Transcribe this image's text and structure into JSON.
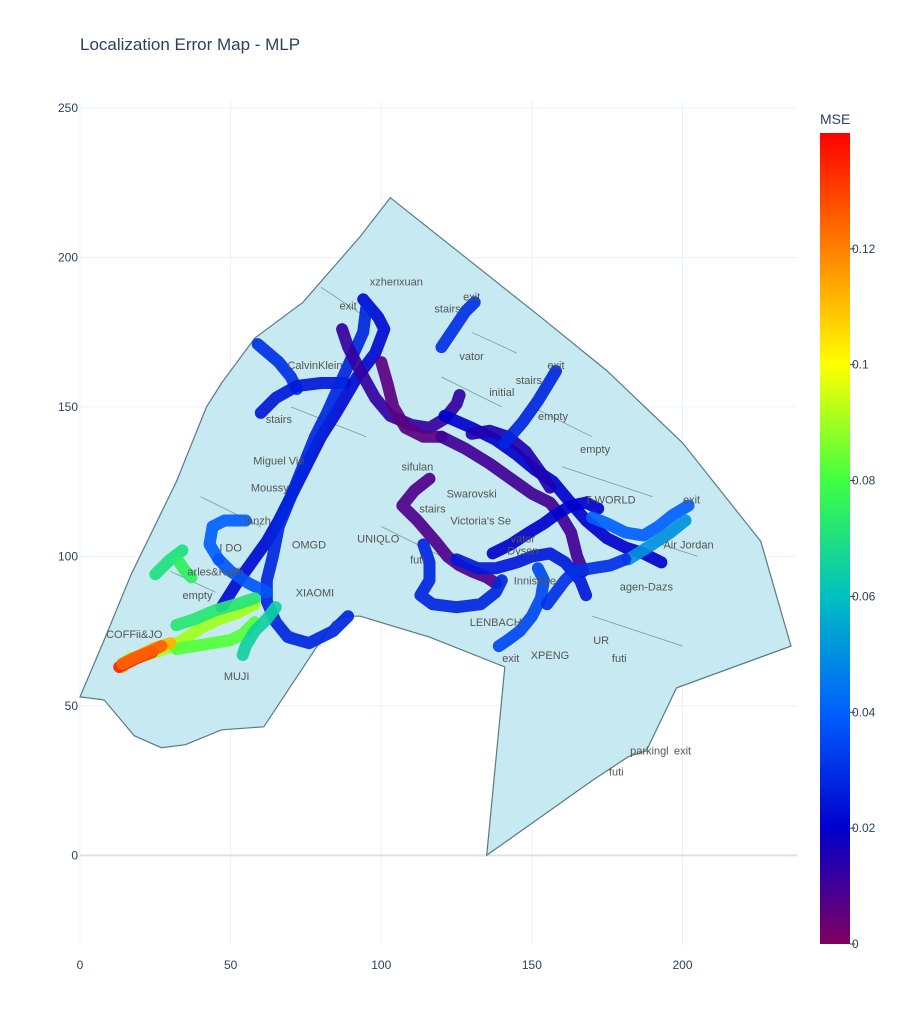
{
  "chart_data": {
    "type": "scatter",
    "title": "Localization Error Map - MLP",
    "xlabel": "",
    "ylabel": "",
    "xlim": [
      0,
      238
    ],
    "ylim": [
      -30,
      252
    ],
    "x_ticks": [
      0,
      50,
      100,
      150,
      200
    ],
    "y_ticks": [
      0,
      50,
      100,
      150,
      200,
      250
    ],
    "grid": true,
    "colorbar": {
      "title": "MSE",
      "range": [
        0,
        0.14
      ],
      "ticks": [
        0,
        0.02,
        0.04,
        0.06,
        0.08,
        0.1,
        0.12
      ],
      "tick_labels": [
        "0",
        "0.02",
        "0.04",
        "0.06",
        "0.08",
        "0.1",
        "0.12"
      ],
      "colorscale": [
        "#800060",
        "#0000cc",
        "#0060ff",
        "#00c0c0",
        "#40ff40",
        "#ffff00",
        "#ff8000",
        "#ff0000"
      ]
    },
    "floor_color": "#c6e9f2",
    "floor_outline": [
      [
        27,
        36
      ],
      [
        18,
        40
      ],
      [
        8,
        52
      ],
      [
        0,
        53
      ],
      [
        8,
        72
      ],
      [
        17,
        94
      ],
      [
        32,
        125
      ],
      [
        42,
        150
      ],
      [
        47,
        158
      ],
      [
        58,
        173
      ],
      [
        74,
        185
      ],
      [
        93,
        207
      ],
      [
        103,
        220
      ],
      [
        153,
        180
      ],
      [
        175,
        162
      ],
      [
        200,
        138
      ],
      [
        226,
        105
      ],
      [
        236,
        70
      ],
      [
        198,
        56
      ],
      [
        188,
        35
      ],
      [
        182,
        33
      ],
      [
        170,
        25
      ],
      [
        135,
        0
      ],
      [
        141,
        63
      ],
      [
        116,
        73
      ],
      [
        93,
        80
      ],
      [
        88,
        80
      ],
      [
        84,
        78
      ],
      [
        61,
        43
      ],
      [
        47,
        42
      ],
      [
        35,
        37
      ],
      [
        27,
        36
      ]
    ],
    "store_labels": [
      {
        "text": "xzhenxuan",
        "x": 105,
        "y": 192
      },
      {
        "text": "exit",
        "x": 89,
        "y": 184
      },
      {
        "text": "stairs",
        "x": 122,
        "y": 183
      },
      {
        "text": "exit",
        "x": 130,
        "y": 187
      },
      {
        "text": "vator",
        "x": 130,
        "y": 167
      },
      {
        "text": "exit",
        "x": 158,
        "y": 164
      },
      {
        "text": "stairs",
        "x": 149,
        "y": 159
      },
      {
        "text": "CalvinKlein",
        "x": 78,
        "y": 164
      },
      {
        "text": "initial",
        "x": 140,
        "y": 155
      },
      {
        "text": "empty",
        "x": 157,
        "y": 147
      },
      {
        "text": "stairs",
        "x": 66,
        "y": 146
      },
      {
        "text": "empty",
        "x": 171,
        "y": 136
      },
      {
        "text": "Miguel Vie",
        "x": 66,
        "y": 132
      },
      {
        "text": "sifulan",
        "x": 112,
        "y": 130
      },
      {
        "text": "Moussy",
        "x": 63,
        "y": 123
      },
      {
        "text": "Swarovski",
        "x": 130,
        "y": 121
      },
      {
        "text": "T-WORLD",
        "x": 176,
        "y": 119
      },
      {
        "text": "exit",
        "x": 203,
        "y": 119
      },
      {
        "text": "stairs",
        "x": 117,
        "y": 116
      },
      {
        "text": "Victoria's Se",
        "x": 133,
        "y": 112
      },
      {
        "text": "lanzh",
        "x": 59,
        "y": 112
      },
      {
        "text": "vator",
        "x": 147,
        "y": 106
      },
      {
        "text": "UNIQLO",
        "x": 99,
        "y": 106
      },
      {
        "text": "OMGD",
        "x": 76,
        "y": 104
      },
      {
        "text": "Dyson",
        "x": 147,
        "y": 102
      },
      {
        "text": "Air Jordan",
        "x": 202,
        "y": 104
      },
      {
        "text": "I DO",
        "x": 50,
        "y": 103
      },
      {
        "text": "futi",
        "x": 112,
        "y": 99
      },
      {
        "text": "arles&Keith",
        "x": 45,
        "y": 95
      },
      {
        "text": "Innisfree",
        "x": 151,
        "y": 92
      },
      {
        "text": "agen-Dazs",
        "x": 188,
        "y": 90
      },
      {
        "text": "XIAOMI",
        "x": 78,
        "y": 88
      },
      {
        "text": "empty",
        "x": 39,
        "y": 87
      },
      {
        "text": "LENBACH",
        "x": 138,
        "y": 78
      },
      {
        "text": "COFFii&JO",
        "x": 18,
        "y": 74
      },
      {
        "text": "UR",
        "x": 173,
        "y": 72
      },
      {
        "text": "XPENG",
        "x": 156,
        "y": 67
      },
      {
        "text": "exit",
        "x": 143,
        "y": 66
      },
      {
        "text": "futi",
        "x": 179,
        "y": 66
      },
      {
        "text": "MUJI",
        "x": 52,
        "y": 60
      },
      {
        "text": "parkingl",
        "x": 189,
        "y": 35
      },
      {
        "text": "exit",
        "x": 200,
        "y": 35
      },
      {
        "text": "futi",
        "x": 178,
        "y": 28
      }
    ],
    "trajectories": [
      {
        "points": [
          [
            59,
            171
          ],
          [
            66,
            165
          ],
          [
            70,
            160
          ],
          [
            72,
            156
          ]
        ],
        "mse": 0.03
      },
      {
        "points": [
          [
            60,
            148
          ],
          [
            65,
            153
          ],
          [
            72,
            157
          ],
          [
            80,
            158
          ],
          [
            88,
            158
          ]
        ],
        "mse": 0.025
      },
      {
        "points": [
          [
            94,
            186
          ],
          [
            99,
            180
          ],
          [
            101,
            176
          ],
          [
            98,
            168
          ],
          [
            92,
            160
          ],
          [
            85,
            148
          ],
          [
            80,
            140
          ],
          [
            75,
            130
          ],
          [
            70,
            120
          ],
          [
            66,
            112
          ],
          [
            62,
            105
          ],
          [
            57,
            98
          ],
          [
            52,
            91
          ],
          [
            47,
            83
          ]
        ],
        "mse": 0.022
      },
      {
        "points": [
          [
            95,
            183
          ],
          [
            94,
            175
          ],
          [
            90,
            166
          ],
          [
            86,
            157
          ],
          [
            82,
            148
          ],
          [
            78,
            140
          ],
          [
            74,
            130
          ],
          [
            70,
            120
          ],
          [
            66,
            110
          ],
          [
            64,
            100
          ],
          [
            62,
            92
          ],
          [
            62,
            85
          ],
          [
            65,
            78
          ],
          [
            69,
            73
          ],
          [
            76,
            71
          ],
          [
            84,
            75
          ],
          [
            89,
            80
          ]
        ],
        "mse": 0.028
      },
      {
        "points": [
          [
            87,
            176
          ],
          [
            89,
            170
          ],
          [
            93,
            162
          ],
          [
            98,
            153
          ],
          [
            103,
            147
          ],
          [
            110,
            144
          ],
          [
            116,
            143
          ],
          [
            121,
            146
          ],
          [
            125,
            151
          ],
          [
            126,
            154
          ]
        ],
        "mse": 0.012
      },
      {
        "points": [
          [
            100,
            165
          ],
          [
            102,
            158
          ],
          [
            104,
            150
          ],
          [
            108,
            143
          ],
          [
            114,
            140
          ],
          [
            120,
            140
          ]
        ],
        "mse": 0.006
      },
      {
        "points": [
          [
            120,
            140
          ],
          [
            128,
            136
          ],
          [
            136,
            131
          ],
          [
            143,
            126
          ],
          [
            150,
            121
          ],
          [
            156,
            118
          ],
          [
            160,
            113
          ],
          [
            163,
            108
          ],
          [
            165,
            100
          ],
          [
            167,
            95
          ]
        ],
        "mse": 0.01
      },
      {
        "points": [
          [
            121,
            147
          ],
          [
            130,
            143
          ],
          [
            138,
            139
          ],
          [
            145,
            134
          ],
          [
            151,
            129
          ],
          [
            157,
            125
          ],
          [
            162,
            119
          ],
          [
            168,
            112
          ],
          [
            175,
            106
          ],
          [
            181,
            103
          ],
          [
            187,
            101
          ],
          [
            193,
            98
          ]
        ],
        "mse": 0.02
      },
      {
        "points": [
          [
            130,
            141
          ],
          [
            136,
            142
          ],
          [
            142,
            140
          ],
          [
            148,
            135
          ],
          [
            153,
            128
          ],
          [
            156,
            123
          ]
        ],
        "mse": 0.015
      },
      {
        "points": [
          [
            141,
            138
          ],
          [
            147,
            145
          ],
          [
            152,
            152
          ],
          [
            158,
            162
          ]
        ],
        "mse": 0.028
      },
      {
        "points": [
          [
            120,
            170
          ],
          [
            124,
            176
          ],
          [
            128,
            182
          ],
          [
            131,
            185
          ]
        ],
        "mse": 0.03
      },
      {
        "points": [
          [
            116,
            126
          ],
          [
            111,
            122
          ],
          [
            107,
            117
          ],
          [
            112,
            112
          ],
          [
            118,
            105
          ],
          [
            122,
            100
          ],
          [
            126,
            97
          ],
          [
            130,
            95
          ],
          [
            135,
            93
          ],
          [
            138,
            91
          ]
        ],
        "mse": 0.008
      },
      {
        "points": [
          [
            114,
            104
          ],
          [
            116,
            98
          ],
          [
            116,
            92
          ],
          [
            113,
            87
          ],
          [
            117,
            84
          ],
          [
            125,
            83
          ],
          [
            133,
            84
          ],
          [
            138,
            88
          ],
          [
            140,
            92
          ]
        ],
        "mse": 0.028
      },
      {
        "points": [
          [
            137,
            101
          ],
          [
            143,
            104
          ],
          [
            149,
            108
          ],
          [
            154,
            111
          ],
          [
            158,
            114
          ],
          [
            163,
            117
          ],
          [
            168,
            118
          ],
          [
            172,
            116
          ]
        ],
        "mse": 0.02
      },
      {
        "points": [
          [
            170,
            113
          ],
          [
            175,
            111
          ],
          [
            181,
            108
          ],
          [
            187,
            107
          ],
          [
            192,
            110
          ],
          [
            197,
            114
          ],
          [
            202,
            117
          ]
        ],
        "mse": 0.04
      },
      {
        "points": [
          [
            182,
            99
          ],
          [
            190,
            104
          ],
          [
            196,
            108
          ],
          [
            201,
            112
          ]
        ],
        "mse": 0.05
      },
      {
        "points": [
          [
            152,
            96
          ],
          [
            154,
            92
          ],
          [
            153,
            86
          ],
          [
            150,
            80
          ],
          [
            146,
            75
          ],
          [
            142,
            72
          ],
          [
            139,
            70
          ]
        ],
        "mse": 0.035
      },
      {
        "points": [
          [
            125,
            99
          ],
          [
            132,
            96
          ],
          [
            138,
            96
          ],
          [
            145,
            98
          ],
          [
            150,
            100
          ],
          [
            156,
            101
          ],
          [
            161,
            98
          ],
          [
            166,
            92
          ],
          [
            168,
            87
          ]
        ],
        "mse": 0.025
      },
      {
        "points": [
          [
            155,
            84
          ],
          [
            158,
            88
          ],
          [
            161,
            92
          ],
          [
            164,
            95
          ],
          [
            170,
            96
          ],
          [
            176,
            97
          ],
          [
            181,
            99
          ]
        ],
        "mse": 0.03
      },
      {
        "points": [
          [
            55,
            112
          ],
          [
            48,
            112
          ],
          [
            44,
            110
          ],
          [
            43,
            104
          ],
          [
            46,
            99
          ]
        ],
        "mse": 0.04
      },
      {
        "points": [
          [
            34,
            102
          ],
          [
            30,
            99
          ],
          [
            27,
            96
          ],
          [
            25,
            94
          ]
        ],
        "mse": 0.07
      },
      {
        "points": [
          [
            33,
            98
          ],
          [
            35,
            95
          ],
          [
            37,
            93
          ]
        ],
        "mse": 0.075
      },
      {
        "points": [
          [
            46,
            99
          ],
          [
            50,
            95
          ],
          [
            56,
            91
          ],
          [
            62,
            88
          ]
        ],
        "mse": 0.038
      },
      {
        "points": [
          [
            58,
            84
          ],
          [
            52,
            81
          ],
          [
            46,
            79
          ],
          [
            40,
            76
          ],
          [
            34,
            72
          ],
          [
            28,
            69
          ],
          [
            22,
            67
          ],
          [
            17,
            66
          ],
          [
            14,
            64
          ]
        ],
        "mse": 0.09
      },
      {
        "points": [
          [
            58,
            86
          ],
          [
            52,
            84
          ],
          [
            45,
            82
          ],
          [
            38,
            79
          ],
          [
            32,
            77
          ]
        ],
        "mse": 0.072
      },
      {
        "points": [
          [
            58,
            78
          ],
          [
            54,
            74
          ],
          [
            50,
            72
          ],
          [
            44,
            71
          ],
          [
            38,
            70
          ],
          [
            32,
            69
          ]
        ],
        "mse": 0.082
      },
      {
        "points": [
          [
            30,
            71
          ],
          [
            24,
            69
          ],
          [
            20,
            67
          ],
          [
            16,
            65
          ],
          [
            14,
            63
          ]
        ],
        "mse": 0.112
      },
      {
        "points": [
          [
            24,
            68
          ],
          [
            19,
            66
          ],
          [
            15,
            64
          ],
          [
            13,
            63
          ]
        ],
        "mse": 0.135
      },
      {
        "points": [
          [
            27,
            70
          ],
          [
            23,
            68
          ],
          [
            18,
            66
          ],
          [
            14,
            64
          ]
        ],
        "mse": 0.125
      },
      {
        "points": [
          [
            65,
            83
          ],
          [
            62,
            79
          ],
          [
            58,
            75
          ],
          [
            55,
            70
          ],
          [
            54,
            67
          ]
        ],
        "mse": 0.065
      }
    ]
  }
}
